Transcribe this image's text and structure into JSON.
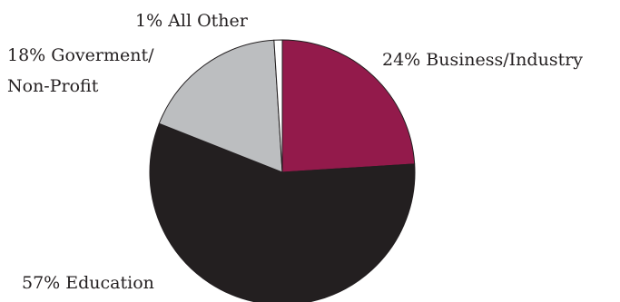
{
  "chart_data": {
    "type": "pie",
    "title": "",
    "slices": [
      {
        "label": "Business/Industry",
        "value": 24,
        "display": "24% Business/Industry",
        "color": "#931a4b"
      },
      {
        "label": "Education",
        "value": 57,
        "display": "57% Education",
        "color": "#231f20"
      },
      {
        "label": "Goverment/Non-Profit",
        "value": 18,
        "display_lines": [
          "18% Goverment/",
          "Non-Profit"
        ],
        "color": "#bcbec0"
      },
      {
        "label": "All Other",
        "value": 1,
        "display": "1% All Other",
        "color": "#ffffff"
      }
    ],
    "start_angle": "12 o'clock",
    "direction": "clockwise",
    "legend": "none",
    "border_color": "#231f20"
  }
}
